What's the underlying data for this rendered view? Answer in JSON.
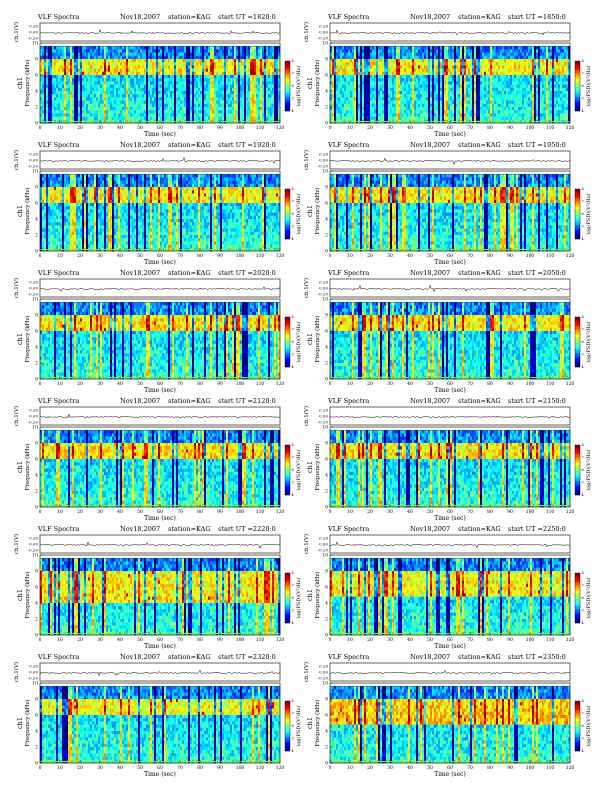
{
  "page": {
    "colors": {
      "background": "#ffffff",
      "spectrogram_low": "#0a2aa8",
      "spectrogram_mid": "#18c8b8",
      "spectrogram_band": "#7cf040",
      "spectrogram_high": "#ff2a00",
      "trace": "#000000"
    }
  },
  "chart_data": [
    {
      "type": "heatmap",
      "title": "VLF Spectra",
      "date": "Nov18,2007",
      "station": "station=KAG",
      "start": "start UT =1820:0",
      "xlabel": "Time (sec)",
      "ylabel": "Frequency (kHz)",
      "ch_label": "ch1",
      "top_label": "ch.1(V)",
      "cbar_label": "log(PSD)(V²/Hz)",
      "xticks": [
        "0",
        "10",
        "20",
        "30",
        "40",
        "50",
        "60",
        "70",
        "80",
        "90",
        "100",
        "110",
        "120"
      ],
      "xlim": [
        0,
        120
      ],
      "yticks": [
        "0",
        "2",
        "4",
        "6",
        "8",
        "10"
      ],
      "ylim": [
        0,
        10
      ],
      "top_yticks": [
        "0.20",
        "0.00",
        "-0.20"
      ],
      "cbar_ticks": [
        "8",
        "7",
        "6",
        "5",
        "4"
      ],
      "cbar_range": [
        4,
        8
      ],
      "band_khz": [
        6,
        8
      ],
      "intensity": 0.55
    },
    {
      "type": "heatmap",
      "title": "VLF Spectra",
      "date": "Nov18,2007",
      "station": "station=KAG",
      "start": "start UT =1850:0",
      "xlabel": "Time (sec)",
      "ylabel": "Frequency (kHz)",
      "ch_label": "ch1",
      "top_label": "ch.1(V)",
      "cbar_label": "log(PSD)(V²/Hz)",
      "xticks": [
        "0",
        "10",
        "20",
        "30",
        "40",
        "50",
        "60",
        "70",
        "80",
        "90",
        "100",
        "110",
        "120"
      ],
      "xlim": [
        0,
        120
      ],
      "yticks": [
        "0",
        "2",
        "4",
        "6",
        "8",
        "10"
      ],
      "ylim": [
        0,
        10
      ],
      "top_yticks": [
        "0.20",
        "0.00",
        "-0.20"
      ],
      "cbar_ticks": [
        "8",
        "7",
        "6",
        "5",
        "4"
      ],
      "cbar_range": [
        4,
        8
      ],
      "band_khz": [
        6,
        8
      ],
      "intensity": 0.55
    },
    {
      "type": "heatmap",
      "title": "VLF Spectra",
      "date": "Nov18,2007",
      "station": "station=KAG",
      "start": "start UT =1920:0",
      "xlabel": "Time (sec)",
      "ylabel": "Frequency (kHz)",
      "ch_label": "ch1",
      "top_label": "ch.1(V)",
      "cbar_label": "log(PSD)(V²/Hz)",
      "xticks": [
        "0",
        "10",
        "20",
        "30",
        "40",
        "50",
        "60",
        "70",
        "80",
        "90",
        "100",
        "110",
        "120"
      ],
      "xlim": [
        0,
        120
      ],
      "yticks": [
        "0",
        "2",
        "4",
        "6",
        "8",
        "10"
      ],
      "ylim": [
        0,
        10
      ],
      "top_yticks": [
        "0.20",
        "0.00",
        "-0.20"
      ],
      "cbar_ticks": [
        "8",
        "7",
        "6",
        "5",
        "4"
      ],
      "cbar_range": [
        4,
        8
      ],
      "band_khz": [
        6,
        8
      ],
      "intensity": 0.5
    },
    {
      "type": "heatmap",
      "title": "VLF Spectra",
      "date": "Nov18,2007",
      "station": "station=KAG",
      "start": "start UT =1950:0",
      "xlabel": "Time (sec)",
      "ylabel": "Frequency (kHz)",
      "ch_label": "ch1",
      "top_label": "ch.1(V)",
      "cbar_label": "log(PSD)(V²/Hz)",
      "xticks": [
        "0",
        "10",
        "20",
        "30",
        "40",
        "50",
        "60",
        "70",
        "80",
        "90",
        "100",
        "110",
        "120"
      ],
      "xlim": [
        0,
        120
      ],
      "yticks": [
        "0",
        "2",
        "4",
        "6",
        "8",
        "10"
      ],
      "ylim": [
        0,
        10
      ],
      "top_yticks": [
        "0.20",
        "0.00",
        "-0.20"
      ],
      "cbar_ticks": [
        "8",
        "7",
        "6",
        "5",
        "4"
      ],
      "cbar_range": [
        4,
        8
      ],
      "band_khz": [
        6,
        8
      ],
      "intensity": 0.55
    },
    {
      "type": "heatmap",
      "title": "VLF Spectra",
      "date": "Nov18,2007",
      "station": "station=KAG",
      "start": "start UT =2020:0",
      "xlabel": "Time (sec)",
      "ylabel": "Frequency (kHz)",
      "ch_label": "ch1",
      "top_label": "ch.1(V)",
      "cbar_label": "log(PSD)(V²/Hz)",
      "xticks": [
        "0",
        "10",
        "20",
        "30",
        "40",
        "50",
        "60",
        "70",
        "80",
        "90",
        "100",
        "110",
        "120"
      ],
      "xlim": [
        0,
        120
      ],
      "yticks": [
        "0",
        "2",
        "4",
        "6",
        "8",
        "10"
      ],
      "ylim": [
        0,
        10
      ],
      "top_yticks": [
        "0.20",
        "0.00",
        "-0.20"
      ],
      "cbar_ticks": [
        "8",
        "7",
        "6",
        "5",
        "4"
      ],
      "cbar_range": [
        4,
        8
      ],
      "band_khz": [
        6,
        8
      ],
      "intensity": 0.6
    },
    {
      "type": "heatmap",
      "title": "VLF Spectra",
      "date": "Nov18,2007",
      "station": "station=KAG",
      "start": "start UT =2050:0",
      "xlabel": "Time (sec)",
      "ylabel": "Frequency (kHz)",
      "ch_label": "ch1",
      "top_label": "ch.1(V)",
      "cbar_label": "log(PSD)(V²/Hz)",
      "xticks": [
        "0",
        "10",
        "20",
        "30",
        "40",
        "50",
        "60",
        "70",
        "80",
        "90",
        "100",
        "110",
        "120"
      ],
      "xlim": [
        0,
        120
      ],
      "yticks": [
        "0",
        "2",
        "4",
        "6",
        "8",
        "10"
      ],
      "ylim": [
        0,
        10
      ],
      "top_yticks": [
        "0.20",
        "0.00",
        "-0.20"
      ],
      "cbar_ticks": [
        "8",
        "7",
        "6",
        "5",
        "4"
      ],
      "cbar_range": [
        4,
        8
      ],
      "band_khz": [
        6,
        8
      ],
      "intensity": 0.55
    },
    {
      "type": "heatmap",
      "title": "VLF Spectra",
      "date": "Nov18,2007",
      "station": "station=KAG",
      "start": "start UT =2120:0",
      "xlabel": "Time (sec)",
      "ylabel": "Frequency (kHz)",
      "ch_label": "ch1",
      "top_label": "ch.1(V)",
      "cbar_label": "log(PSD)(V²/Hz)",
      "xticks": [
        "0",
        "10",
        "20",
        "30",
        "40",
        "50",
        "60",
        "70",
        "80",
        "90",
        "100",
        "110",
        "120"
      ],
      "xlim": [
        0,
        120
      ],
      "yticks": [
        "0",
        "2",
        "4",
        "6",
        "8",
        "10"
      ],
      "ylim": [
        0,
        10
      ],
      "top_yticks": [
        "0.20",
        "0.00",
        "-0.20"
      ],
      "cbar_ticks": [
        "8",
        "7",
        "6",
        "5",
        "4"
      ],
      "cbar_range": [
        4,
        8
      ],
      "band_khz": [
        6,
        8
      ],
      "intensity": 0.6
    },
    {
      "type": "heatmap",
      "title": "VLF Spectra",
      "date": "Nov18,2007",
      "station": "station=KAG",
      "start": "start UT =2150:0",
      "xlabel": "Time (sec)",
      "ylabel": "Frequency (kHz)",
      "ch_label": "ch1",
      "top_label": "ch.1(V)",
      "cbar_label": "log(PSD)(V²/Hz)",
      "xticks": [
        "0",
        "10",
        "20",
        "30",
        "40",
        "50",
        "60",
        "70",
        "80",
        "90",
        "100",
        "110",
        "120"
      ],
      "xlim": [
        0,
        120
      ],
      "yticks": [
        "0",
        "2",
        "4",
        "6",
        "8",
        "10"
      ],
      "ylim": [
        0,
        10
      ],
      "top_yticks": [
        "0.20",
        "0.00",
        "-0.20"
      ],
      "cbar_ticks": [
        "8",
        "7",
        "6",
        "5",
        "4"
      ],
      "cbar_range": [
        4,
        8
      ],
      "band_khz": [
        6,
        8
      ],
      "intensity": 0.55
    },
    {
      "type": "heatmap",
      "title": "VLF Spectra",
      "date": "Nov18,2007",
      "station": "station=KAG",
      "start": "start UT =2220:0",
      "xlabel": "Time (sec)",
      "ylabel": "Frequency (kHz)",
      "ch_label": "ch1",
      "top_label": "ch.1(V)",
      "cbar_label": "log(PSD)(V²/Hz)",
      "xticks": [
        "0",
        "10",
        "20",
        "30",
        "40",
        "50",
        "60",
        "70",
        "80",
        "90",
        "100",
        "110",
        "120"
      ],
      "xlim": [
        0,
        120
      ],
      "yticks": [
        "0",
        "2",
        "4",
        "6",
        "8",
        "10"
      ],
      "ylim": [
        0,
        10
      ],
      "top_yticks": [
        "0.20",
        "0.00",
        "-0.20"
      ],
      "cbar_ticks": [
        "8",
        "7",
        "6",
        "5",
        "4"
      ],
      "cbar_range": [
        4,
        8
      ],
      "band_khz": [
        4,
        8
      ],
      "intensity": 0.5
    },
    {
      "type": "heatmap",
      "title": "VLF Spectra",
      "date": "Nov18,2007",
      "station": "station=KAG",
      "start": "start UT =2250:0",
      "xlabel": "Time (sec)",
      "ylabel": "Frequency (kHz)",
      "ch_label": "ch1",
      "top_label": "ch.1(V)",
      "cbar_label": "log(PSD)(V²/Hz)",
      "xticks": [
        "0",
        "10",
        "20",
        "30",
        "40",
        "50",
        "60",
        "70",
        "80",
        "90",
        "100",
        "110",
        "120"
      ],
      "xlim": [
        0,
        120
      ],
      "yticks": [
        "0",
        "2",
        "4",
        "6",
        "8",
        "10"
      ],
      "ylim": [
        0,
        10
      ],
      "top_yticks": [
        "0.20",
        "0.00",
        "-0.20"
      ],
      "cbar_ticks": [
        "8",
        "7",
        "6",
        "5",
        "4"
      ],
      "cbar_range": [
        4,
        8
      ],
      "band_khz": [
        5,
        8
      ],
      "intensity": 0.45
    },
    {
      "type": "heatmap",
      "title": "VLF Spectra",
      "date": "Nov18,2007",
      "station": "station=KAG",
      "start": "start UT =2320:0",
      "xlabel": "Time (sec)",
      "ylabel": "Frequency (kHz)",
      "ch_label": "ch1",
      "top_label": "ch.1(V)",
      "cbar_label": "log(PSD)(V²/Hz)",
      "xticks": [
        "0",
        "10",
        "20",
        "30",
        "40",
        "50",
        "60",
        "70",
        "80",
        "90",
        "100",
        "110",
        "120"
      ],
      "xlim": [
        0,
        120
      ],
      "yticks": [
        "0",
        "2",
        "4",
        "6",
        "8",
        "10"
      ],
      "ylim": [
        0,
        10
      ],
      "top_yticks": [
        "0.20",
        "0.00",
        "-0.20"
      ],
      "cbar_ticks": [
        "8",
        "7",
        "6",
        "5",
        "4"
      ],
      "cbar_range": [
        4,
        8
      ],
      "band_khz": [
        6,
        8
      ],
      "intensity": 0.45
    },
    {
      "type": "heatmap",
      "title": "VLF Spectra",
      "date": "Nov18,2007",
      "station": "station=KAG",
      "start": "start UT =2350:0",
      "xlabel": "Time (sec)",
      "ylabel": "Frequency (kHz)",
      "ch_label": "ch1",
      "top_label": "ch.1(V)",
      "cbar_label": "log(PSD)(V²/Hz)",
      "xticks": [
        "0",
        "10",
        "20",
        "30",
        "40",
        "50",
        "60",
        "70",
        "80",
        "90",
        "100",
        "110",
        "120"
      ],
      "xlim": [
        0,
        120
      ],
      "yticks": [
        "0",
        "2",
        "4",
        "6",
        "8",
        "10"
      ],
      "ylim": [
        0,
        10
      ],
      "top_yticks": [
        "0.20",
        "0.00",
        "-0.20"
      ],
      "cbar_ticks": [
        "8",
        "7",
        "6",
        "5",
        "4"
      ],
      "cbar_range": [
        4,
        8
      ],
      "band_khz": [
        5,
        8
      ],
      "intensity": 0.7
    }
  ]
}
